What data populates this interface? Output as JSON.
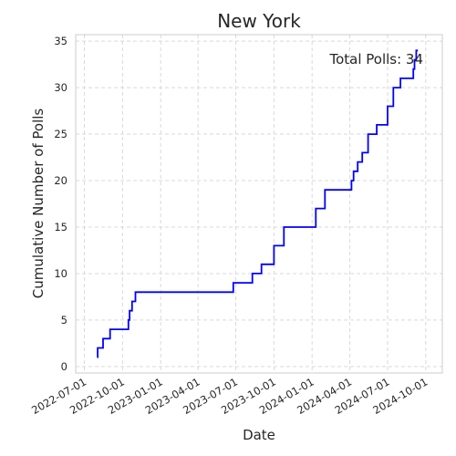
{
  "chart_data": {
    "type": "line",
    "title": "New York",
    "xlabel": "Date",
    "ylabel": "Cumulative Number of Polls",
    "grid": true,
    "line_color": "#0000ff",
    "annotation": "Total Polls: 34",
    "xlim": [
      "2022-06-10",
      "2024-11-10"
    ],
    "ylim": [
      -0.7,
      35.7
    ],
    "x_ticks": [
      "2022-07-01",
      "2022-10-01",
      "2023-01-01",
      "2023-04-01",
      "2023-07-01",
      "2023-10-01",
      "2024-01-01",
      "2024-04-01",
      "2024-07-01",
      "2024-10-01"
    ],
    "y_ticks": [
      0,
      5,
      10,
      15,
      20,
      25,
      30,
      35
    ],
    "series": [
      {
        "points": [
          {
            "x": "2022-08-01",
            "y": 1
          },
          {
            "x": "2022-08-02",
            "y": 2
          },
          {
            "x": "2022-08-15",
            "y": 3
          },
          {
            "x": "2022-09-01",
            "y": 4
          },
          {
            "x": "2022-10-15",
            "y": 5
          },
          {
            "x": "2022-10-18",
            "y": 6
          },
          {
            "x": "2022-10-24",
            "y": 7
          },
          {
            "x": "2022-11-01",
            "y": 8
          },
          {
            "x": "2023-06-25",
            "y": 9
          },
          {
            "x": "2023-08-10",
            "y": 10
          },
          {
            "x": "2023-09-01",
            "y": 11
          },
          {
            "x": "2023-10-01",
            "y": 13
          },
          {
            "x": "2023-10-25",
            "y": 15
          },
          {
            "x": "2024-01-10",
            "y": 17
          },
          {
            "x": "2024-02-01",
            "y": 19
          },
          {
            "x": "2024-04-05",
            "y": 20
          },
          {
            "x": "2024-04-10",
            "y": 21
          },
          {
            "x": "2024-04-20",
            "y": 22
          },
          {
            "x": "2024-05-01",
            "y": 23
          },
          {
            "x": "2024-05-15",
            "y": 25
          },
          {
            "x": "2024-06-05",
            "y": 26
          },
          {
            "x": "2024-07-01",
            "y": 28
          },
          {
            "x": "2024-07-15",
            "y": 30
          },
          {
            "x": "2024-08-01",
            "y": 31
          },
          {
            "x": "2024-09-01",
            "y": 32
          },
          {
            "x": "2024-09-04",
            "y": 33
          },
          {
            "x": "2024-09-08",
            "y": 34
          },
          {
            "x": "2024-09-12",
            "y": 34
          }
        ]
      }
    ]
  }
}
